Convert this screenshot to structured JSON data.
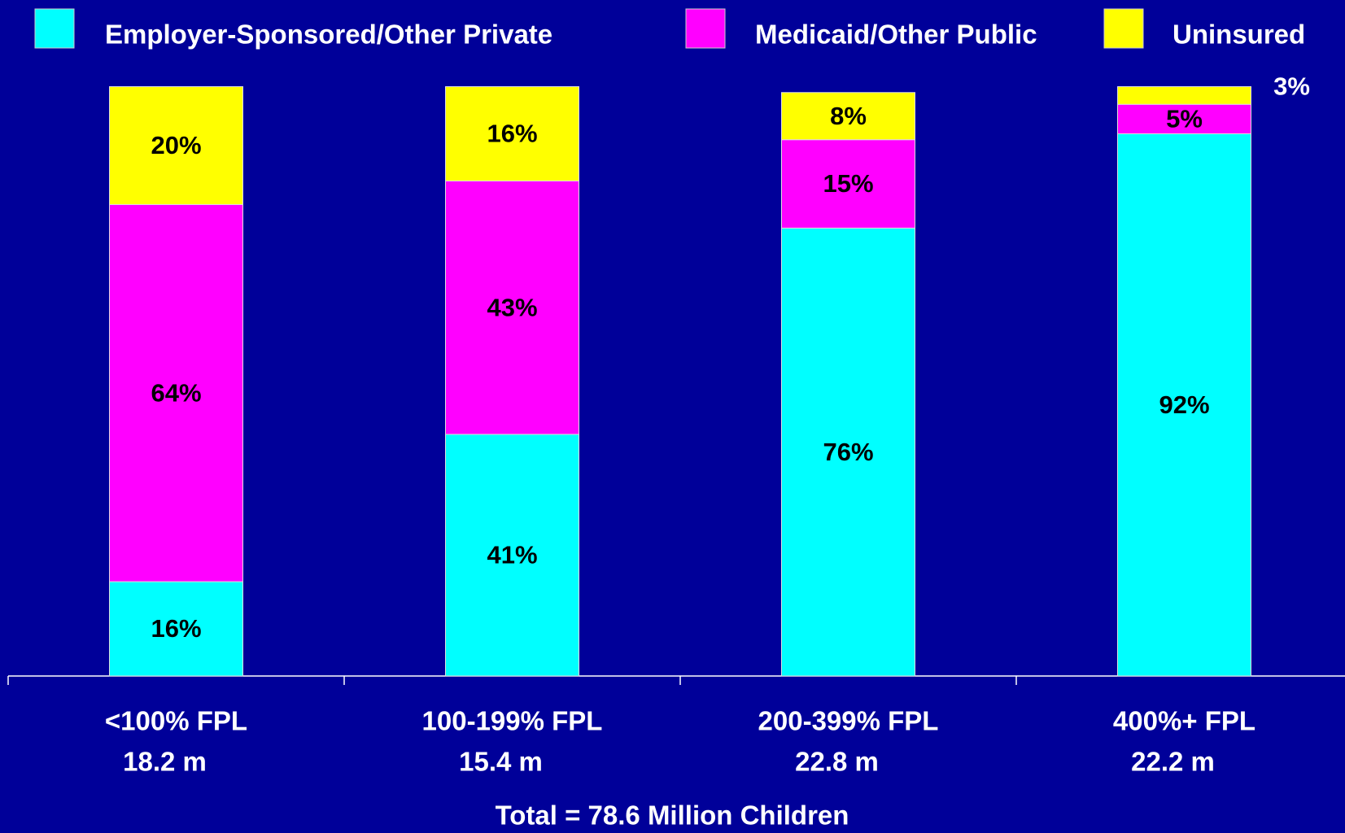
{
  "chart_data": {
    "type": "stacked_bar",
    "categories": [
      "<100% FPL",
      "100-199% FPL",
      "200-399% FPL",
      "400%+ FPL"
    ],
    "sublabels": [
      "18.2 m",
      "15.4 m",
      "22.8 m",
      "22.2 m"
    ],
    "note": "Total =  78.6 Million Children",
    "ylim": [
      0,
      100
    ],
    "legend": "top",
    "series": [
      {
        "name": "Employer-Sponsored/Other Private",
        "color": "#00ffff",
        "values": [
          16,
          41,
          76,
          92
        ],
        "value_labels": [
          "16%",
          "41%",
          "76%",
          "92%"
        ]
      },
      {
        "name": "Medicaid/Other Public",
        "color": "#ff00ff",
        "values": [
          64,
          43,
          15,
          5
        ],
        "value_labels": [
          "64%",
          "43%",
          "15%",
          "5%"
        ]
      },
      {
        "name": "Uninsured",
        "color": "#ffff00",
        "values": [
          20,
          16,
          8,
          3
        ],
        "value_labels": [
          "20%",
          "16%",
          "8%",
          "3%"
        ]
      }
    ]
  }
}
